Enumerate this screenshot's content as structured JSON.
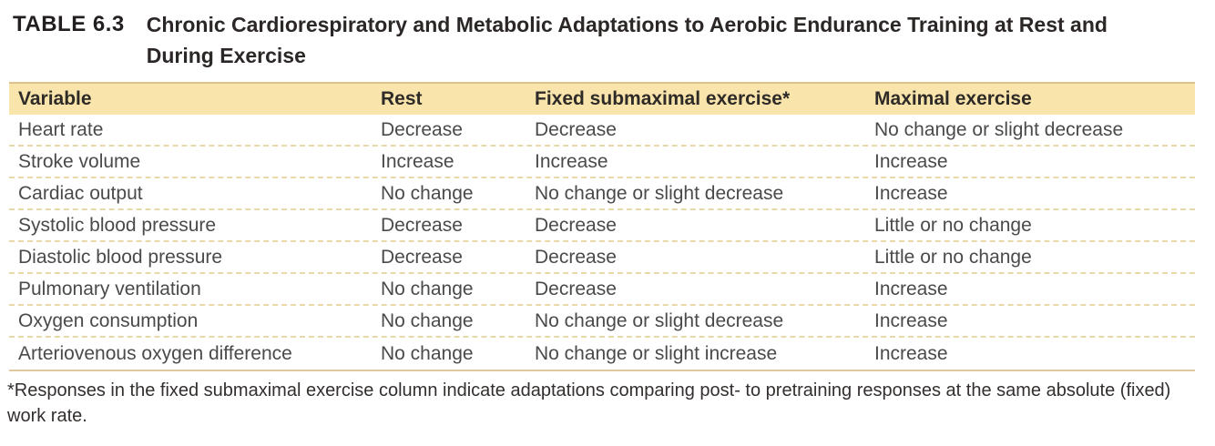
{
  "title": {
    "label": "TABLE 6.3",
    "text": "Chronic Cardiorespiratory and Metabolic Adaptations to Aerobic Endurance Training at Rest and During Exercise"
  },
  "table": {
    "columns": [
      "Variable",
      "Rest",
      "Fixed submaximal exercise*",
      "Maximal exercise"
    ],
    "rows": [
      [
        "Heart rate",
        "Decrease",
        "Decrease",
        "No change or slight decrease"
      ],
      [
        "Stroke volume",
        "Increase",
        "Increase",
        "Increase"
      ],
      [
        "Cardiac output",
        "No change",
        "No change or slight decrease",
        "Increase"
      ],
      [
        "Systolic blood pressure",
        "Decrease",
        "Decrease",
        "Little or no change"
      ],
      [
        "Diastolic blood pressure",
        "Decrease",
        "Decrease",
        "Little or no change"
      ],
      [
        "Pulmonary ventilation",
        "No change",
        "Decrease",
        "Increase"
      ],
      [
        "Oxygen consumption",
        "No change",
        "No change or slight decrease",
        "Increase"
      ],
      [
        "Arteriovenous oxygen difference",
        "No change",
        "No change or slight increase",
        "Increase"
      ]
    ]
  },
  "footnote": "*Responses in the fixed submaximal exercise column indicate adaptations comparing post- to pretraining responses at the same absolute (fixed) work rate.",
  "colors": {
    "header_bg": "#f9e5ab",
    "header_top_border": "#d9c28e",
    "row_divider_dashed": "#e9d9a9",
    "table_bottom_border": "#e0c8a0",
    "title_text": "#231f20",
    "body_text": "#4a4a4a"
  }
}
